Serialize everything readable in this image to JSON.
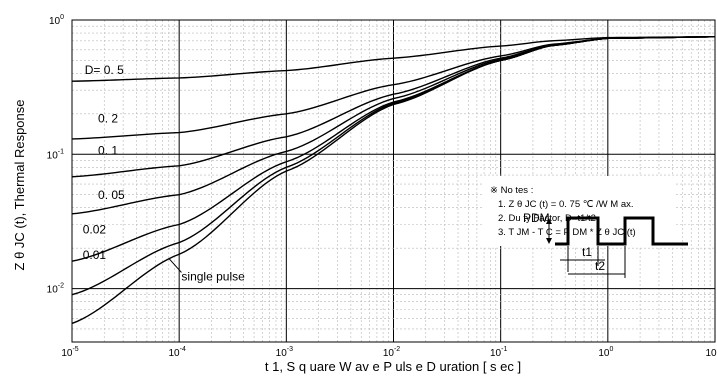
{
  "chart_data": {
    "type": "line",
    "xscale": "log",
    "yscale": "log",
    "xlim": [
      1e-05,
      10
    ],
    "ylim": [
      0.004,
      1
    ],
    "xticks": [
      {
        "v": 1e-05,
        "m": "10",
        "e": "-5"
      },
      {
        "v": 0.0001,
        "m": "10",
        "e": "-4"
      },
      {
        "v": 0.001,
        "m": "10",
        "e": "-3"
      },
      {
        "v": 0.01,
        "m": "10",
        "e": "-2"
      },
      {
        "v": 0.1,
        "m": "10",
        "e": "-1"
      },
      {
        "v": 1,
        "m": "10",
        "e": "0"
      },
      {
        "v": 10,
        "m": "10",
        "e": "1"
      }
    ],
    "yticks": [
      {
        "v": 1,
        "m": "10",
        "e": "0"
      },
      {
        "v": 0.1,
        "m": "10",
        "e": "-1"
      },
      {
        "v": 0.01,
        "m": "10",
        "e": "-2"
      }
    ],
    "xlabel": "t 1, S q uare W av e  P uls e  D uration [ s ec ]",
    "ylabel": "Z θ JC (t), Thermal Response",
    "grid": true,
    "series": [
      {
        "name": "D= 0. 5",
        "x": [
          1e-05,
          0.0001,
          0.001,
          0.01,
          0.1,
          0.3,
          1,
          10
        ],
        "y": [
          0.35,
          0.37,
          0.42,
          0.52,
          0.64,
          0.7,
          0.74,
          0.75
        ]
      },
      {
        "name": "0. 2",
        "x": [
          1e-05,
          0.0001,
          0.001,
          0.01,
          0.1,
          0.3,
          1,
          10
        ],
        "y": [
          0.13,
          0.145,
          0.2,
          0.33,
          0.54,
          0.66,
          0.73,
          0.75
        ]
      },
      {
        "name": "0. 1",
        "x": [
          1e-05,
          0.0001,
          0.001,
          0.01,
          0.1,
          0.3,
          1,
          10
        ],
        "y": [
          0.068,
          0.082,
          0.135,
          0.28,
          0.52,
          0.655,
          0.73,
          0.75
        ]
      },
      {
        "name": "0. 05",
        "x": [
          1e-05,
          0.0001,
          0.001,
          0.01,
          0.1,
          0.3,
          1,
          10
        ],
        "y": [
          0.036,
          0.05,
          0.105,
          0.26,
          0.51,
          0.65,
          0.73,
          0.75
        ]
      },
      {
        "name": "0.02",
        "x": [
          1e-05,
          0.0001,
          0.001,
          0.01,
          0.1,
          0.3,
          1,
          10
        ],
        "y": [
          0.016,
          0.03,
          0.088,
          0.245,
          0.5,
          0.645,
          0.73,
          0.75
        ]
      },
      {
        "name": "0.01",
        "x": [
          1e-05,
          0.0001,
          0.001,
          0.01,
          0.1,
          0.3,
          1,
          10
        ],
        "y": [
          0.009,
          0.022,
          0.08,
          0.24,
          0.5,
          0.645,
          0.73,
          0.75
        ]
      },
      {
        "name": "single pulse",
        "x": [
          1e-05,
          0.0001,
          0.001,
          0.01,
          0.1,
          0.3,
          1,
          10
        ],
        "y": [
          0.0055,
          0.018,
          0.075,
          0.235,
          0.5,
          0.645,
          0.73,
          0.75
        ]
      }
    ],
    "notes": {
      "title": "※ No tes :",
      "line1": "1. Z θ JC (t) = 0. 75 ℃ /W M ax.",
      "line2": "2. Du ty Factor, D=t1/t2",
      "line3": "3. T JM - T C = P DM * Z θ JC (t)"
    },
    "pulse_labels": {
      "pdm": "PDM",
      "t1": "t1",
      "t2": "t2"
    }
  }
}
